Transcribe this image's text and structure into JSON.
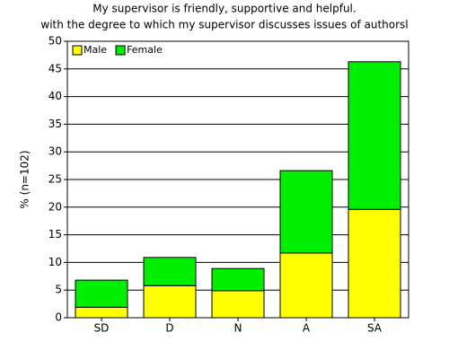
{
  "chart_data": {
    "type": "stacked-bar",
    "title": [
      "My supervisor is friendly, supportive and helpful.",
      "with the degree to which my supervisor discusses issues of authorsl"
    ],
    "y_label": "% (n=102)",
    "categories": [
      "SD",
      "D",
      "N",
      "A",
      "SA"
    ],
    "series": [
      {
        "name": "Male",
        "color": "#ffff00",
        "values": [
          1.9,
          5.8,
          4.9,
          11.7,
          19.6
        ]
      },
      {
        "name": "Female",
        "color": "#00ee00",
        "values": [
          4.9,
          5.1,
          4.0,
          14.9,
          26.7
        ]
      }
    ],
    "ylim": [
      0,
      50
    ],
    "yticks": [
      0,
      5,
      10,
      15,
      20,
      25,
      30,
      35,
      40,
      45,
      50
    ],
    "grid": true,
    "legend": "top-left"
  }
}
